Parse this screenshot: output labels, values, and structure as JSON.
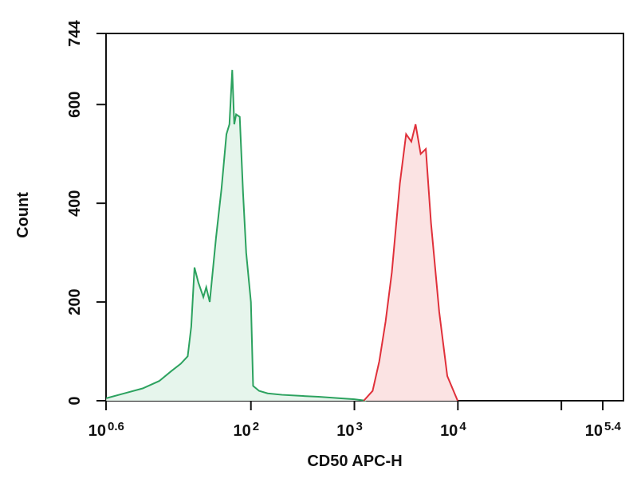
{
  "chart_data": {
    "type": "area",
    "x_label": "CD50 APC-H",
    "y_label": "Count",
    "x_scale": "log",
    "xlim": [
      3.981,
      398107
    ],
    "ylim": [
      0,
      744
    ],
    "xticks": [
      {
        "value": 3.981,
        "label": "10",
        "exponent": "0.6"
      },
      {
        "value": 100,
        "label": "10",
        "exponent": "2"
      },
      {
        "value": 1000,
        "label": "10",
        "exponent": "3"
      },
      {
        "value": 10000,
        "label": "10",
        "exponent": "4"
      },
      {
        "value": 100000,
        "label": null,
        "exponent": null
      },
      {
        "value": 251189,
        "label": "10",
        "exponent": "5.4"
      }
    ],
    "yticks": [
      0,
      200,
      400,
      600,
      744
    ],
    "series": [
      {
        "color": "#2ca25f",
        "fill": "#e6f5ec",
        "x": [
          4,
          6,
          9,
          13,
          17,
          21,
          24.5,
          26.5,
          28.5,
          31,
          34.7,
          37,
          40,
          46,
          52,
          58,
          62,
          66,
          69,
          72,
          78,
          84,
          90,
          100,
          105,
          120,
          145,
          200,
          295,
          450,
          720,
          1000,
          1300
        ],
        "values": [
          5,
          15,
          25,
          40,
          60,
          75,
          90,
          150,
          270,
          240,
          210,
          230,
          200,
          330,
          430,
          540,
          560,
          670,
          560,
          580,
          575,
          420,
          300,
          200,
          30,
          20,
          15,
          12,
          10,
          8,
          5,
          3,
          0
        ]
      },
      {
        "color": "#e0303a",
        "fill": "#fbe3e3",
        "x": [
          1230,
          1500,
          1740,
          2000,
          2300,
          2750,
          3160,
          3550,
          3900,
          4370,
          4900,
          5500,
          6600,
          7900,
          9950
        ],
        "values": [
          0,
          20,
          80,
          160,
          260,
          440,
          540,
          525,
          560,
          500,
          510,
          360,
          180,
          50,
          0
        ]
      }
    ]
  }
}
